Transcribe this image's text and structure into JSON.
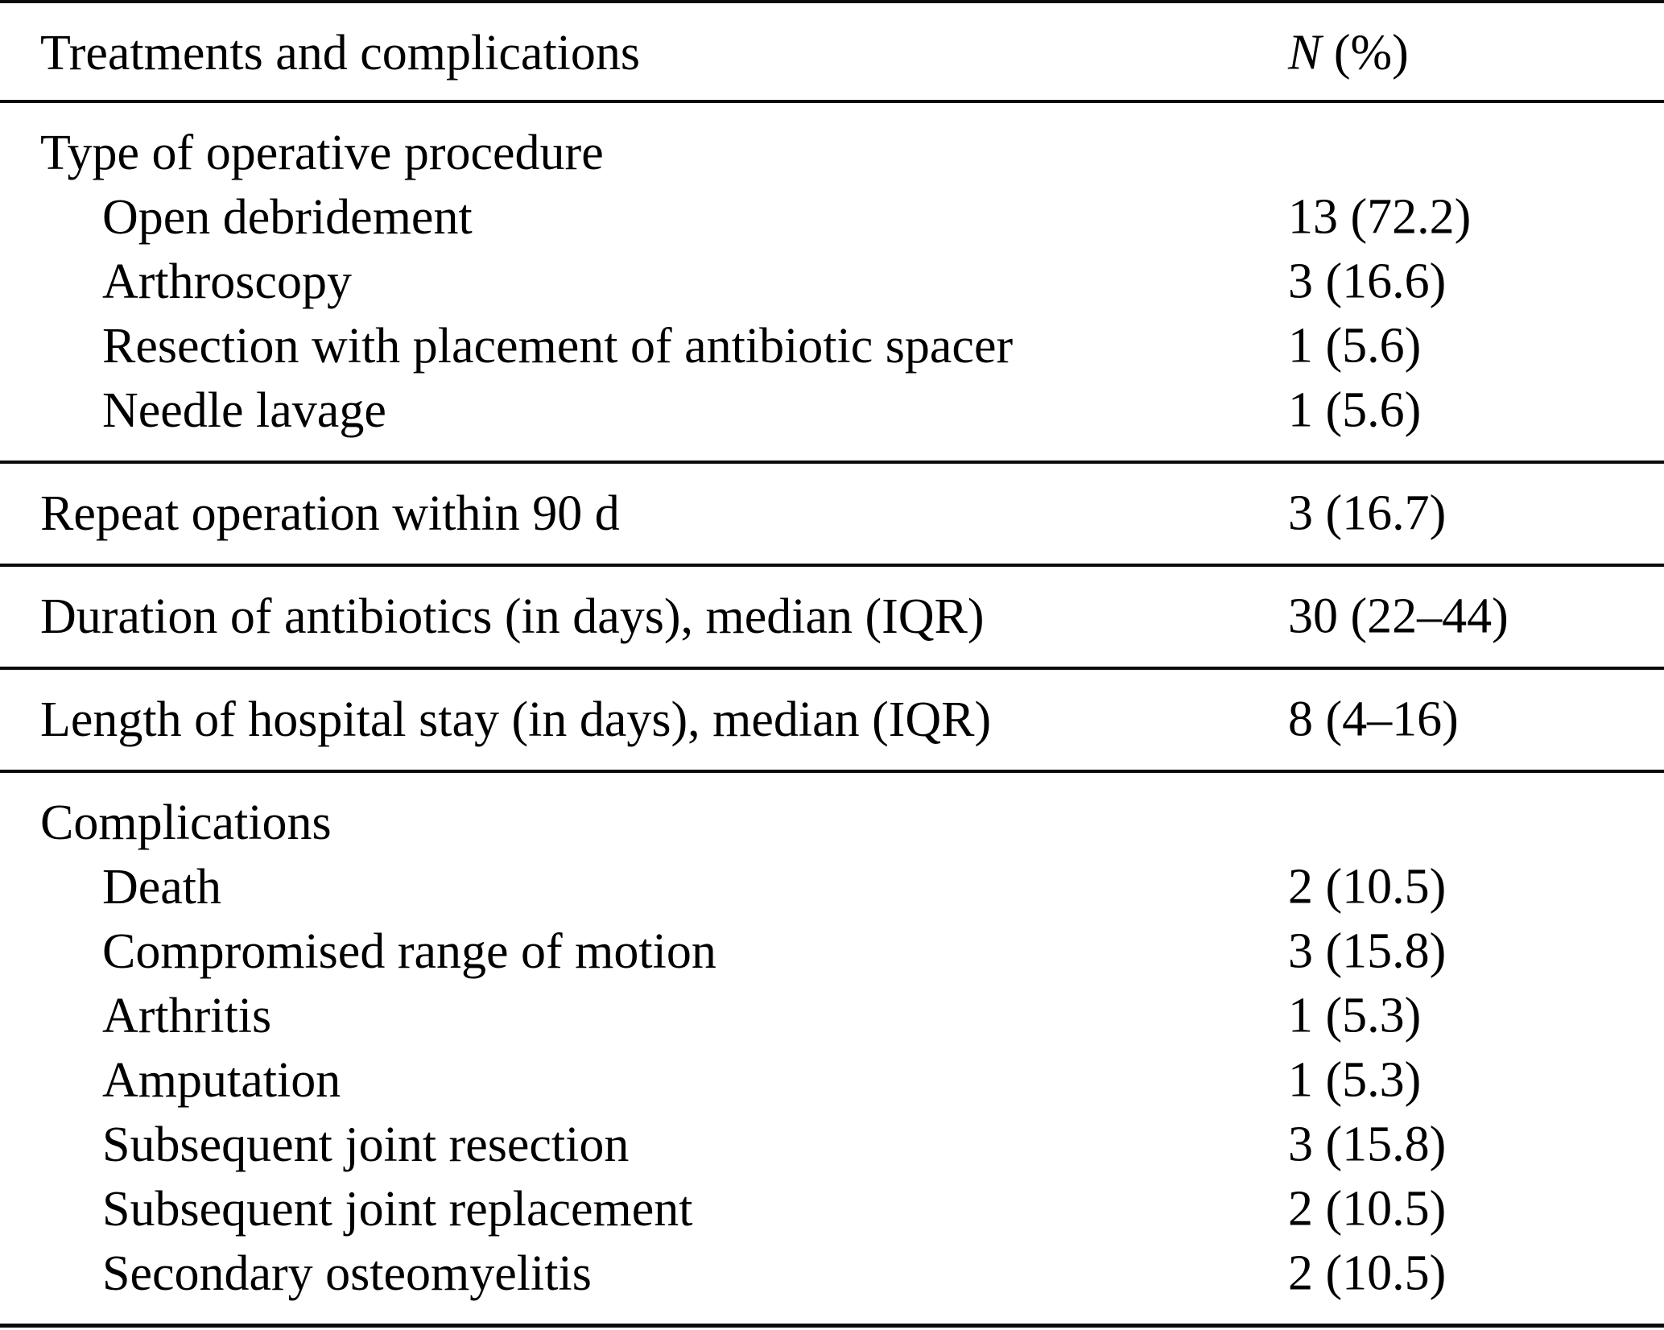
{
  "table": {
    "title": "Treatments and complications table",
    "columns": {
      "col1": "Treatments and complications",
      "col2_n": "N",
      "col2_rest": " (%)"
    },
    "sections": [
      {
        "name": "type-of-operative-procedure",
        "rows": [
          {
            "label": "Type of operative procedure",
            "value": ""
          },
          {
            "label": "Open debridement",
            "value": "13 (72.2)"
          },
          {
            "label": "Arthroscopy",
            "value": "3 (16.6)"
          },
          {
            "label": "Resection with placement of antibiotic spacer",
            "value": "1 (5.6)"
          },
          {
            "label": "Needle lavage",
            "value": "1 (5.6)"
          }
        ]
      },
      {
        "name": "repeat-operation",
        "rows": [
          {
            "label": "Repeat operation within 90 d",
            "value": "3 (16.7)"
          }
        ]
      },
      {
        "name": "duration-of-antibiotics",
        "rows": [
          {
            "label": "Duration of antibiotics (in days), median (IQR)",
            "value": "30 (22–44)"
          }
        ]
      },
      {
        "name": "length-of-hospital-stay",
        "rows": [
          {
            "label": "Length of hospital stay (in days), median (IQR)",
            "value": "8 (4–16)"
          }
        ]
      },
      {
        "name": "complications",
        "rows": [
          {
            "label": "Complications",
            "value": ""
          },
          {
            "label": "Death",
            "value": "2 (10.5)"
          },
          {
            "label": "Compromised range of motion",
            "value": "3 (15.8)"
          },
          {
            "label": "Arthritis",
            "value": "1 (5.3)"
          },
          {
            "label": "Amputation",
            "value": "1 (5.3)"
          },
          {
            "label": "Subsequent joint resection",
            "value": "3 (15.8)"
          },
          {
            "label": "Subsequent joint replacement",
            "value": "2 (10.5)"
          },
          {
            "label": "Secondary osteomyelitis",
            "value": "2 (10.5)"
          }
        ]
      }
    ]
  }
}
